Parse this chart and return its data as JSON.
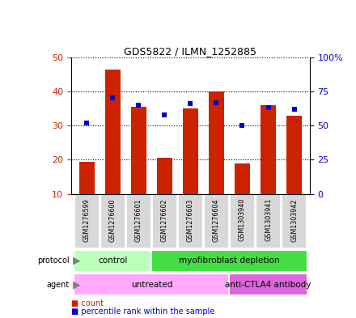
{
  "title": "GDS5822 / ILMN_1252885",
  "samples": [
    "GSM1276599",
    "GSM1276600",
    "GSM1276601",
    "GSM1276602",
    "GSM1276603",
    "GSM1276604",
    "GSM1303940",
    "GSM1303941",
    "GSM1303942"
  ],
  "counts": [
    19.5,
    46.5,
    35.5,
    20.5,
    35.0,
    40.0,
    19.0,
    36.0,
    33.0
  ],
  "percentile_ranks": [
    52,
    70,
    65,
    58,
    66,
    67,
    50,
    63,
    62
  ],
  "ylim_left": [
    10,
    50
  ],
  "ylim_right": [
    0,
    100
  ],
  "yticks_left": [
    10,
    20,
    30,
    40,
    50
  ],
  "yticks_right": [
    0,
    25,
    50,
    75,
    100
  ],
  "ytick_labels_right": [
    "0",
    "25",
    "50",
    "75",
    "100%"
  ],
  "bar_color": "#cc2200",
  "dot_color": "#0000cc",
  "protocol_groups": [
    {
      "label": "control",
      "start": 0,
      "end": 3,
      "color": "#bbffbb"
    },
    {
      "label": "myofibroblast depletion",
      "start": 3,
      "end": 9,
      "color": "#44dd44"
    }
  ],
  "agent_groups": [
    {
      "label": "untreated",
      "start": 0,
      "end": 6,
      "color": "#ffaaff"
    },
    {
      "label": "anti-CTLA4 antibody",
      "start": 6,
      "end": 9,
      "color": "#dd66dd"
    }
  ],
  "sample_bg": "#d8d8d8",
  "plot_bg": "#ffffff",
  "grid_color": "#000000"
}
